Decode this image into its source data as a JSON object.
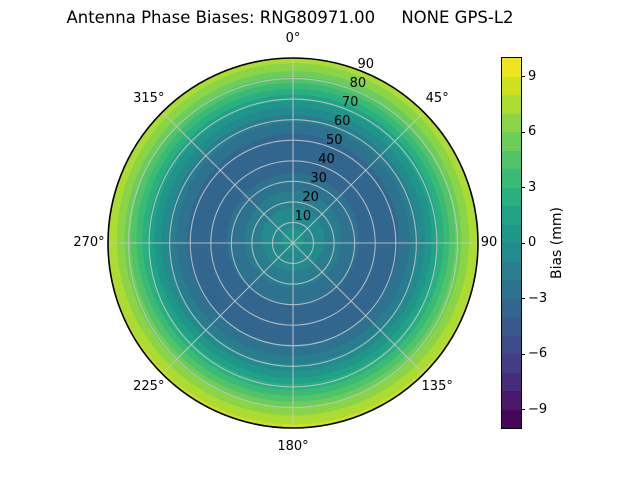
{
  "title": "Antenna Phase Biases: RNG80971.00     NONE GPS-L2",
  "chart_data": {
    "type": "heatmap",
    "projection": "polar",
    "title": "Antenna Phase Biases: RNG80971.00     NONE GPS-L2",
    "colormap": "viridis",
    "theta_ticks_deg": [
      0,
      45,
      90,
      135,
      180,
      225,
      270,
      315
    ],
    "theta_tick_labels": [
      "0°",
      "45°",
      "90",
      "135°",
      "180°",
      "225°",
      "270°",
      "315°"
    ],
    "r_ticks": [
      10,
      20,
      30,
      40,
      50,
      60,
      70,
      80,
      90
    ],
    "r_tick_labels": [
      "10",
      "20",
      "30",
      "40",
      "50",
      "60",
      "70",
      "80",
      "90"
    ],
    "r_max": 90,
    "r_label_angle_deg": 22.5,
    "grid": true,
    "grid_color": "#c6c6c6",
    "outline_color": "#000000",
    "background_color": "#ffffff",
    "colorbar": {
      "label": "Bias (mm)",
      "tick_values": [
        9,
        6,
        3,
        0,
        -3,
        -6,
        -9
      ],
      "tick_labels": [
        "9",
        "6",
        "3",
        "0",
        "−3",
        "−6",
        "−9"
      ],
      "vmin": -10,
      "vmax": 10,
      "n_bands": 20
    },
    "radial_bias_profile_mm": [
      [
        0.0,
        0.4
      ],
      [
        0.1,
        -0.3
      ],
      [
        0.2,
        -1.3
      ],
      [
        0.3,
        -2.5
      ],
      [
        0.4,
        -3.4
      ],
      [
        0.47,
        -3.9
      ],
      [
        0.55,
        -3.3
      ],
      [
        0.63,
        -2.0
      ],
      [
        0.69,
        -0.6
      ],
      [
        0.75,
        1.0
      ],
      [
        0.81,
        2.9
      ],
      [
        0.86,
        4.5
      ],
      [
        0.91,
        6.0
      ],
      [
        0.96,
        7.2
      ],
      [
        1.0,
        8.0
      ]
    ],
    "viridis_anchors": [
      [
        0.0,
        "#440154"
      ],
      [
        0.05,
        "#470d60"
      ],
      [
        0.1,
        "#482475"
      ],
      [
        0.15,
        "#463480"
      ],
      [
        0.2,
        "#414487"
      ],
      [
        0.25,
        "#3b528b"
      ],
      [
        0.3,
        "#355f8d"
      ],
      [
        0.35,
        "#2f6c8e"
      ],
      [
        0.4,
        "#2a788e"
      ],
      [
        0.45,
        "#25848e"
      ],
      [
        0.5,
        "#21918c"
      ],
      [
        0.55,
        "#1e9b8a"
      ],
      [
        0.6,
        "#22a884"
      ],
      [
        0.65,
        "#31b57c"
      ],
      [
        0.7,
        "#44bf70"
      ],
      [
        0.75,
        "#5ec962"
      ],
      [
        0.8,
        "#7ad151"
      ],
      [
        0.85,
        "#9bd93c"
      ],
      [
        0.9,
        "#bddf26"
      ],
      [
        0.95,
        "#dde318"
      ],
      [
        1.0,
        "#fde725"
      ]
    ]
  }
}
